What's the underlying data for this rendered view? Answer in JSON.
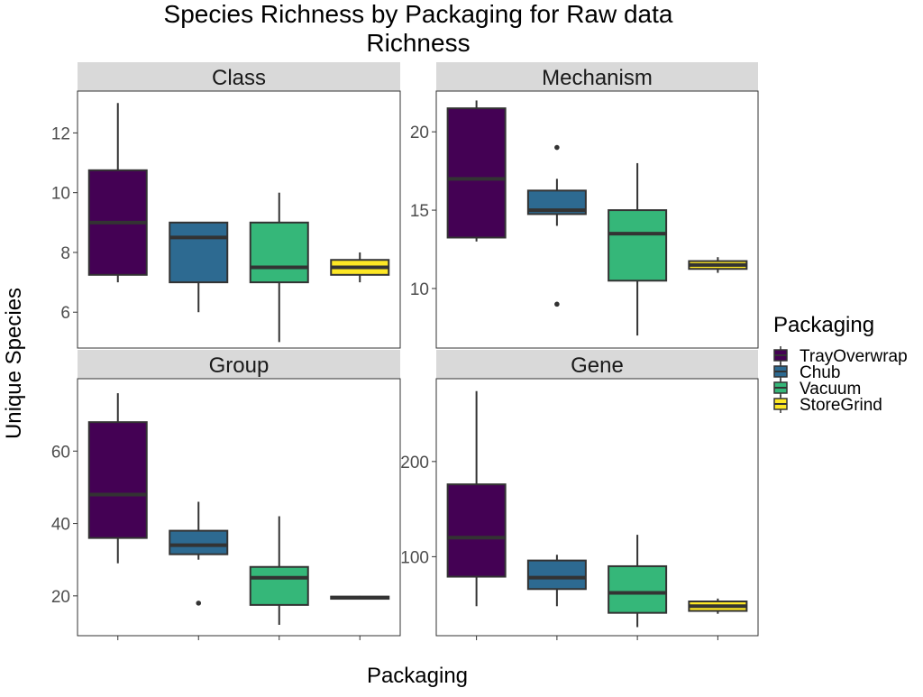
{
  "title_line1": "Species Richness by Packaging for Raw data",
  "title_line2": "Richness",
  "xlabel": "Packaging",
  "ylabel": "Unique Species",
  "legend": {
    "title": "Packaging",
    "items": [
      {
        "label": "TrayOverwrap",
        "color": "#440154"
      },
      {
        "label": "Chub",
        "color": "#2d6a91"
      },
      {
        "label": "Vacuum",
        "color": "#35b779"
      },
      {
        "label": "StoreGrind",
        "color": "#fde725"
      }
    ]
  },
  "chart_data": {
    "type": "boxplot",
    "categories": [
      "TrayOverwrap",
      "Chub",
      "Vacuum",
      "StoreGrind"
    ],
    "legend_position": "right",
    "grid": false,
    "panels": [
      {
        "name": "Class",
        "ylim": [
          4.8,
          13.4
        ],
        "yticks": [
          6,
          8,
          10,
          12
        ],
        "boxes": [
          {
            "category": "TrayOverwrap",
            "whisker_low": 7,
            "q1": 7.25,
            "median": 9,
            "q3": 10.75,
            "whisker_high": 13,
            "outliers": []
          },
          {
            "category": "Chub",
            "whisker_low": 6,
            "q1": 7,
            "median": 8.5,
            "q3": 9,
            "whisker_high": 9,
            "outliers": []
          },
          {
            "category": "Vacuum",
            "whisker_low": 5,
            "q1": 7,
            "median": 7.5,
            "q3": 9,
            "whisker_high": 10,
            "outliers": []
          },
          {
            "category": "StoreGrind",
            "whisker_low": 7,
            "q1": 7.25,
            "median": 7.5,
            "q3": 7.75,
            "whisker_high": 8,
            "outliers": []
          }
        ]
      },
      {
        "name": "Mechanism",
        "ylim": [
          6.2,
          22.6
        ],
        "yticks": [
          10,
          15,
          20
        ],
        "boxes": [
          {
            "category": "TrayOverwrap",
            "whisker_low": 13,
            "q1": 13.25,
            "median": 17,
            "q3": 21.5,
            "whisker_high": 22,
            "outliers": []
          },
          {
            "category": "Chub",
            "whisker_low": 14,
            "q1": 14.75,
            "median": 15,
            "q3": 16.25,
            "whisker_high": 17,
            "outliers": [
              19,
              9
            ]
          },
          {
            "category": "Vacuum",
            "whisker_low": 7,
            "q1": 10.5,
            "median": 13.5,
            "q3": 15,
            "whisker_high": 18,
            "outliers": []
          },
          {
            "category": "StoreGrind",
            "whisker_low": 11,
            "q1": 11.25,
            "median": 11.5,
            "q3": 11.75,
            "whisker_high": 12,
            "outliers": []
          }
        ]
      },
      {
        "name": "Group",
        "ylim": [
          9,
          80
        ],
        "yticks": [
          20,
          40,
          60
        ],
        "boxes": [
          {
            "category": "TrayOverwrap",
            "whisker_low": 29,
            "q1": 36,
            "median": 48,
            "q3": 68,
            "whisker_high": 76,
            "outliers": []
          },
          {
            "category": "Chub",
            "whisker_low": 30,
            "q1": 31.5,
            "median": 34,
            "q3": 38,
            "whisker_high": 46,
            "outliers": [
              18
            ]
          },
          {
            "category": "Vacuum",
            "whisker_low": 12,
            "q1": 17.5,
            "median": 25,
            "q3": 28,
            "whisker_high": 42,
            "outliers": []
          },
          {
            "category": "StoreGrind",
            "whisker_low": 19,
            "q1": 19.2,
            "median": 19.5,
            "q3": 19.8,
            "whisker_high": 20,
            "outliers": []
          }
        ]
      },
      {
        "name": "Gene",
        "ylim": [
          17,
          287
        ],
        "yticks": [
          100,
          200
        ],
        "boxes": [
          {
            "category": "TrayOverwrap",
            "whisker_low": 48,
            "q1": 79,
            "median": 120,
            "q3": 176,
            "whisker_high": 274,
            "outliers": []
          },
          {
            "category": "Chub",
            "whisker_low": 48,
            "q1": 66,
            "median": 78,
            "q3": 96,
            "whisker_high": 102,
            "outliers": []
          },
          {
            "category": "Vacuum",
            "whisker_low": 26,
            "q1": 41,
            "median": 62,
            "q3": 90,
            "whisker_high": 123,
            "outliers": []
          },
          {
            "category": "StoreGrind",
            "whisker_low": 40,
            "q1": 43,
            "median": 48,
            "q3": 53,
            "whisker_high": 56,
            "outliers": []
          }
        ]
      }
    ]
  }
}
